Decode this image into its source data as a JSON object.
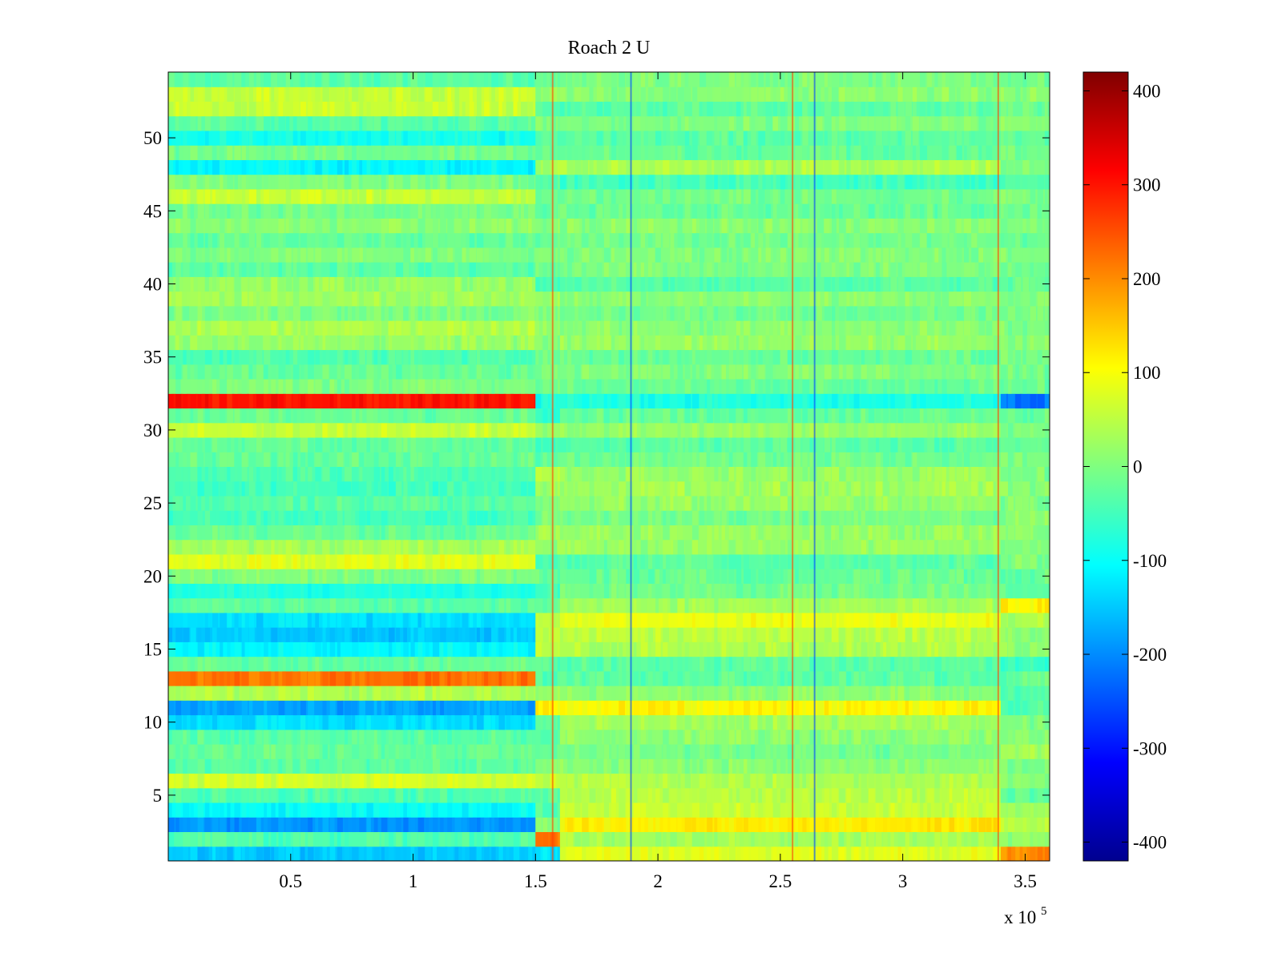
{
  "chart_data": {
    "type": "heatmap",
    "title": "Roach 2 U",
    "xlabel": "",
    "ylabel": "",
    "x_multiplier": "x 10",
    "x_multiplier_exponent": "5",
    "xlim": [
      0,
      360000
    ],
    "ylim": [
      0.5,
      54.5
    ],
    "x_ticks": [
      0.5,
      1,
      1.5,
      2,
      2.5,
      3,
      3.5
    ],
    "x_tick_labels": [
      "0.5",
      "1",
      "1.5",
      "2",
      "2.5",
      "3",
      "3.5"
    ],
    "y_ticks": [
      5,
      10,
      15,
      20,
      25,
      30,
      35,
      40,
      45,
      50
    ],
    "y_tick_labels": [
      "5",
      "10",
      "15",
      "20",
      "25",
      "30",
      "35",
      "40",
      "45",
      "50"
    ],
    "colorbar": {
      "colormap": "jet",
      "clim": [
        -420,
        420
      ],
      "ticks": [
        400,
        300,
        200,
        100,
        0,
        -100,
        -200,
        -300,
        -400
      ],
      "tick_labels": [
        "400",
        "300",
        "200",
        "100",
        "0",
        "-100",
        "-200",
        "-300",
        "-400"
      ]
    },
    "rows": 54,
    "segment_breaks_x": [
      150000,
      160000,
      340000
    ],
    "row_levels": [
      {
        "row": 1,
        "values": [
          -150,
          -120,
          80,
          200
        ]
      },
      {
        "row": 2,
        "values": [
          -40,
          220,
          30,
          20
        ]
      },
      {
        "row": 3,
        "values": [
          -190,
          0,
          120,
          40
        ]
      },
      {
        "row": 4,
        "values": [
          -100,
          -30,
          60,
          20
        ]
      },
      {
        "row": 5,
        "values": [
          -40,
          -20,
          50,
          -30
        ]
      },
      {
        "row": 6,
        "values": [
          70,
          60,
          40,
          10
        ]
      },
      {
        "row": 7,
        "values": [
          -30,
          0,
          10,
          -10
        ]
      },
      {
        "row": 8,
        "values": [
          -20,
          -20,
          -10,
          30
        ]
      },
      {
        "row": 9,
        "values": [
          -30,
          -40,
          10,
          0
        ]
      },
      {
        "row": 10,
        "values": [
          -130,
          -20,
          30,
          0
        ]
      },
      {
        "row": 11,
        "values": [
          -180,
          110,
          110,
          -40
        ]
      },
      {
        "row": 12,
        "values": [
          40,
          20,
          10,
          -40
        ]
      },
      {
        "row": 13,
        "values": [
          220,
          -40,
          -30,
          -20
        ]
      },
      {
        "row": 14,
        "values": [
          -20,
          -30,
          -30,
          -60
        ]
      },
      {
        "row": 15,
        "values": [
          -110,
          50,
          40,
          10
        ]
      },
      {
        "row": 16,
        "values": [
          -150,
          60,
          50,
          10
        ]
      },
      {
        "row": 17,
        "values": [
          -130,
          50,
          90,
          40
        ]
      },
      {
        "row": 18,
        "values": [
          -30,
          -20,
          30,
          110
        ]
      },
      {
        "row": 19,
        "values": [
          -80,
          -40,
          -10,
          -30
        ]
      },
      {
        "row": 20,
        "values": [
          0,
          -20,
          -20,
          -20
        ]
      },
      {
        "row": 21,
        "values": [
          80,
          -50,
          -30,
          0
        ]
      },
      {
        "row": 22,
        "values": [
          30,
          20,
          20,
          0
        ]
      },
      {
        "row": 23,
        "values": [
          -20,
          40,
          20,
          0
        ]
      },
      {
        "row": 24,
        "values": [
          -50,
          0,
          -10,
          10
        ]
      },
      {
        "row": 25,
        "values": [
          -30,
          -10,
          20,
          0
        ]
      },
      {
        "row": 26,
        "values": [
          -50,
          20,
          30,
          10
        ]
      },
      {
        "row": 27,
        "values": [
          -40,
          40,
          20,
          0
        ]
      },
      {
        "row": 28,
        "values": [
          -20,
          -30,
          -10,
          0
        ]
      },
      {
        "row": 29,
        "values": [
          -20,
          -40,
          -30,
          -20
        ]
      },
      {
        "row": 30,
        "values": [
          60,
          20,
          20,
          0
        ]
      },
      {
        "row": 31,
        "values": [
          -20,
          -60,
          -20,
          -20
        ]
      },
      {
        "row": 32,
        "values": [
          300,
          -80,
          -80,
          -220
        ]
      },
      {
        "row": 33,
        "values": [
          0,
          -20,
          -20,
          -20
        ]
      },
      {
        "row": 34,
        "values": [
          -20,
          10,
          0,
          -10
        ]
      },
      {
        "row": 35,
        "values": [
          -40,
          -20,
          -20,
          0
        ]
      },
      {
        "row": 36,
        "values": [
          20,
          10,
          20,
          10
        ]
      },
      {
        "row": 37,
        "values": [
          40,
          10,
          10,
          0
        ]
      },
      {
        "row": 38,
        "values": [
          0,
          -10,
          -10,
          -10
        ]
      },
      {
        "row": 39,
        "values": [
          30,
          20,
          10,
          0
        ]
      },
      {
        "row": 40,
        "values": [
          20,
          -40,
          -30,
          -20
        ]
      },
      {
        "row": 41,
        "values": [
          -30,
          -10,
          0,
          -10
        ]
      },
      {
        "row": 42,
        "values": [
          0,
          10,
          0,
          0
        ]
      },
      {
        "row": 43,
        "values": [
          -20,
          -20,
          -10,
          -20
        ]
      },
      {
        "row": 44,
        "values": [
          10,
          0,
          10,
          0
        ]
      },
      {
        "row": 45,
        "values": [
          -10,
          -30,
          -20,
          -10
        ]
      },
      {
        "row": 46,
        "values": [
          60,
          -10,
          -10,
          0
        ]
      },
      {
        "row": 47,
        "values": [
          0,
          -40,
          -50,
          -30
        ]
      },
      {
        "row": 48,
        "values": [
          -110,
          40,
          40,
          0
        ]
      },
      {
        "row": 49,
        "values": [
          -10,
          -20,
          -20,
          -10
        ]
      },
      {
        "row": 50,
        "values": [
          -90,
          -30,
          -30,
          -20
        ]
      },
      {
        "row": 51,
        "values": [
          -30,
          10,
          0,
          10
        ]
      },
      {
        "row": 52,
        "values": [
          60,
          -40,
          -30,
          -20
        ]
      },
      {
        "row": 53,
        "values": [
          60,
          20,
          10,
          10
        ]
      },
      {
        "row": 54,
        "values": [
          -30,
          -10,
          0,
          -10
        ]
      }
    ],
    "vertical_streaks_x": [
      157000,
      189000,
      255000,
      264000,
      339000
    ]
  }
}
